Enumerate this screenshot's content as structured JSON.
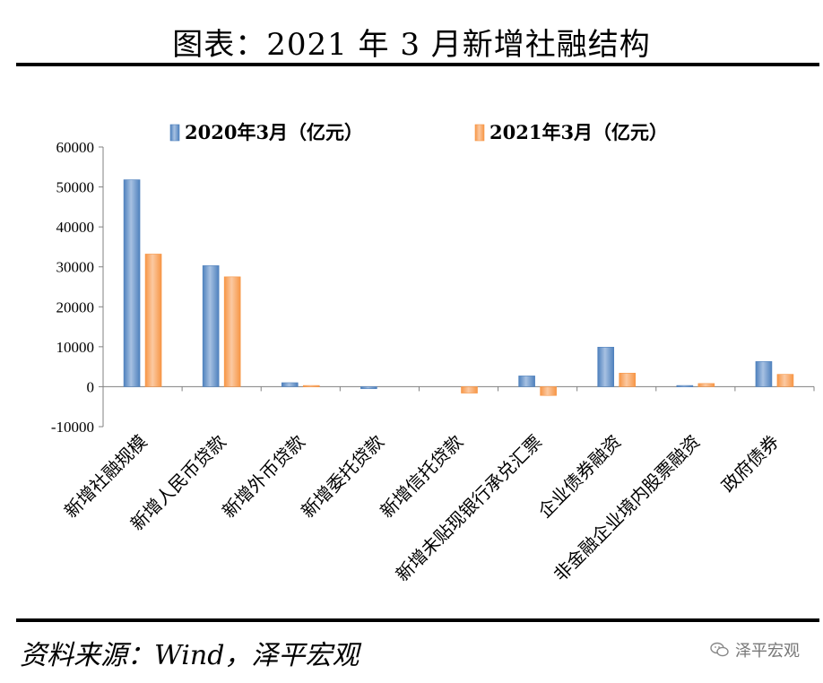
{
  "header": {
    "title": "图表：2021 年 3 月新增社融结构"
  },
  "footer": {
    "source": "资料来源：Wind，泽平宏观",
    "watermark": "泽平宏观"
  },
  "colors": {
    "series_2020": "#4f81bd",
    "series_2021": "#f79646",
    "axis": "#808080"
  },
  "chart_data": {
    "type": "bar",
    "title": "",
    "xlabel": "",
    "ylabel": "",
    "ylim": [
      -10000,
      60000
    ],
    "yticks": [
      60000,
      50000,
      40000,
      30000,
      20000,
      10000,
      0,
      -10000
    ],
    "legend_position": "top",
    "categories": [
      "新增社融规模",
      "新增人民币贷款",
      "新增外币贷款",
      "新增委托贷款",
      "新增信托贷款",
      "新增未贴现银行承兑汇票",
      "企业债券融资",
      "非金融企业境内股票融资",
      "政府债券"
    ],
    "series": [
      {
        "name": "2020年3月（亿元）",
        "values": [
          51800,
          30300,
          1000,
          -500,
          0,
          2700,
          9900,
          300,
          6300
        ]
      },
      {
        "name": "2021年3月（亿元）",
        "values": [
          33200,
          27500,
          300,
          0,
          -1600,
          -2200,
          3400,
          800,
          3100
        ]
      }
    ]
  }
}
